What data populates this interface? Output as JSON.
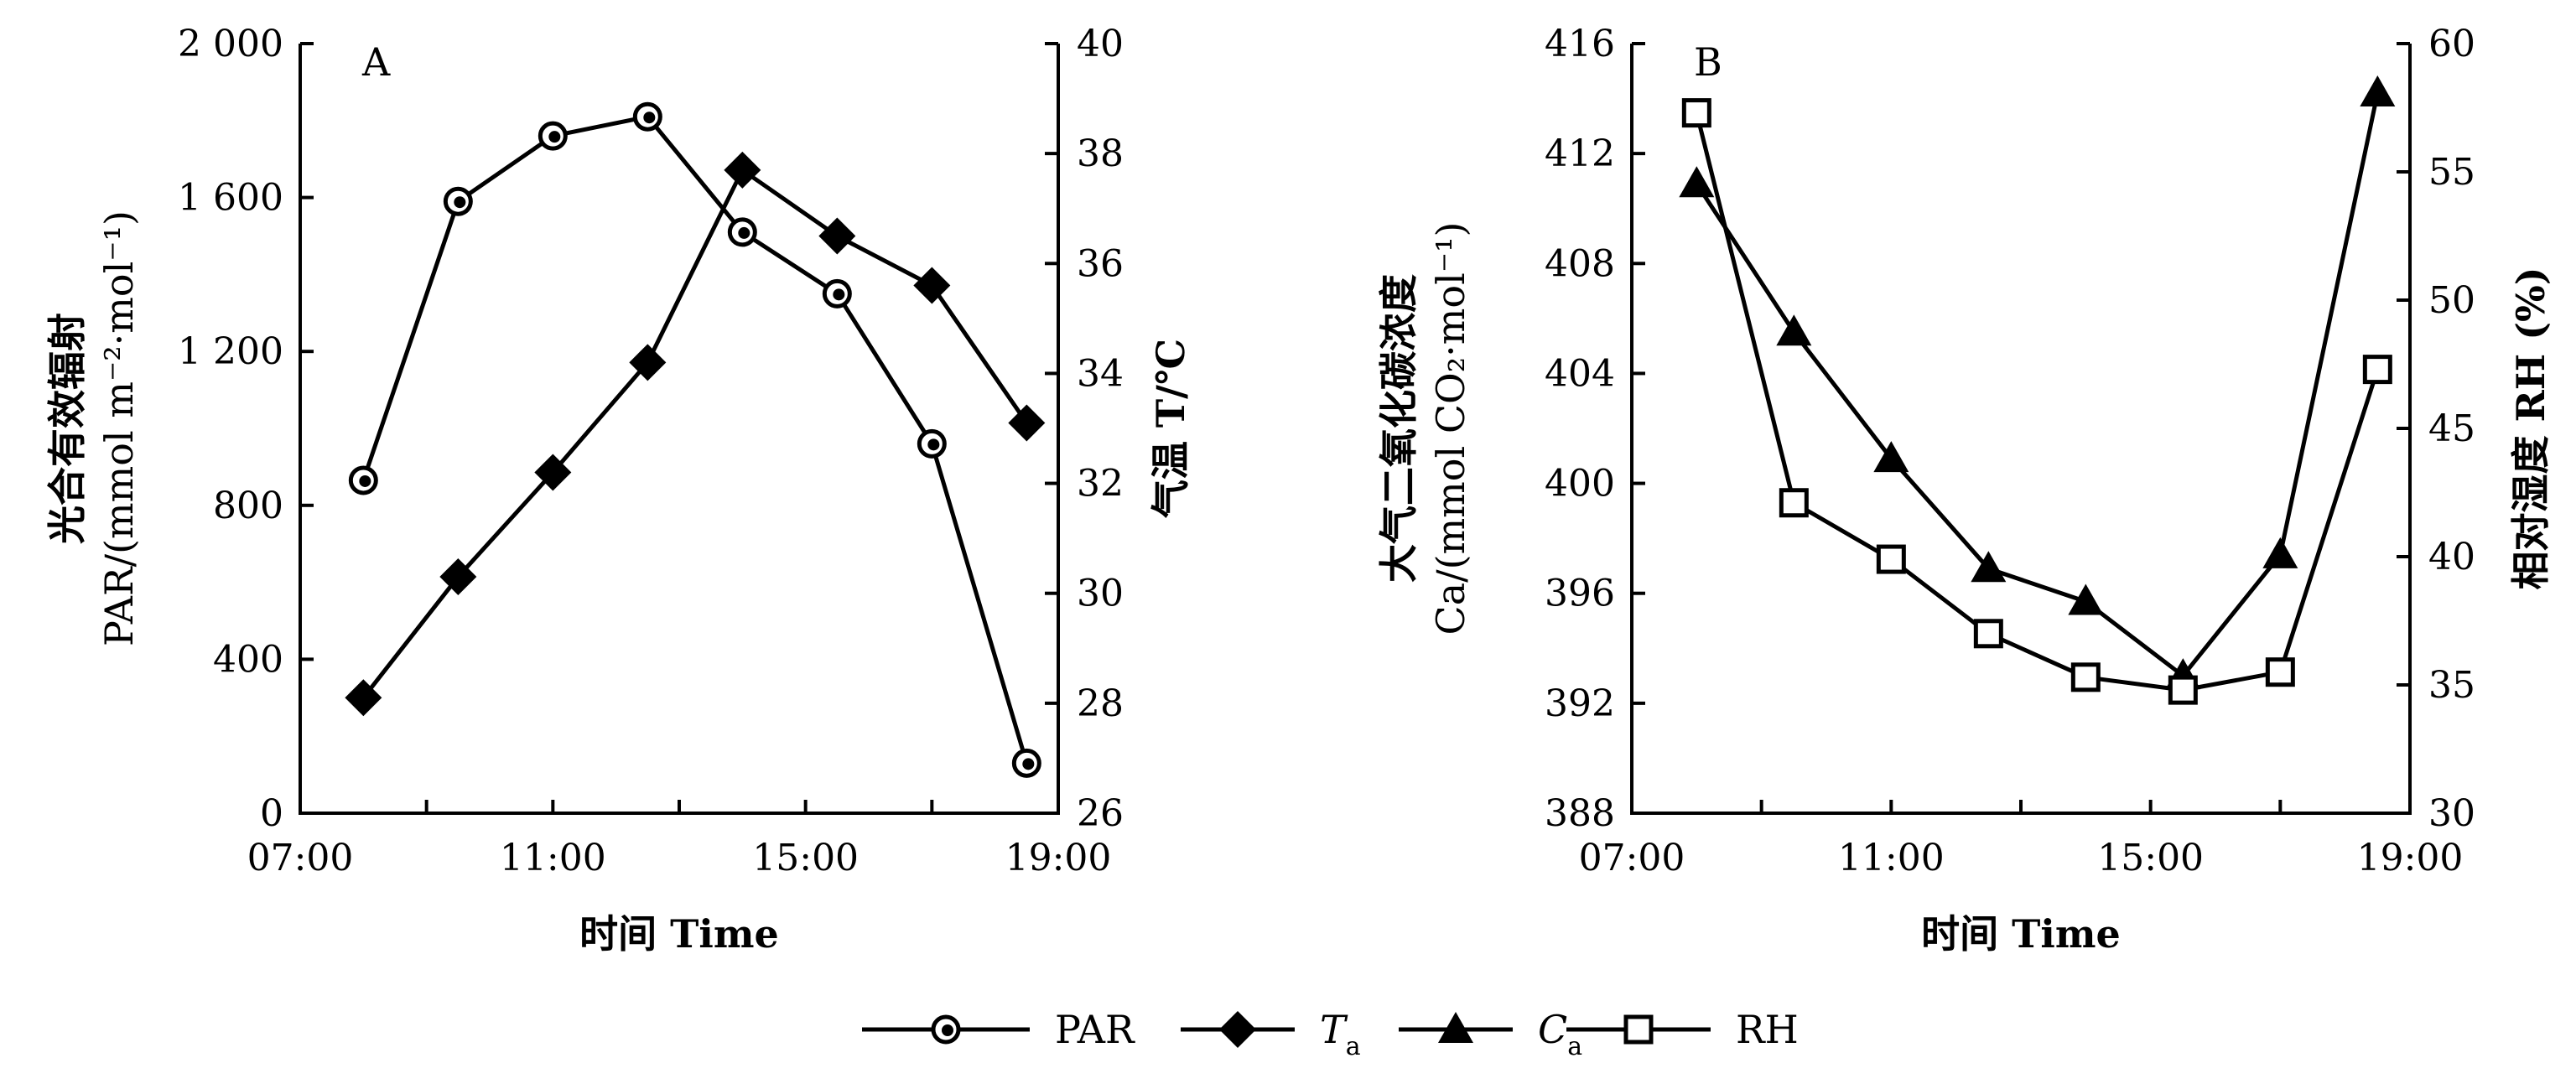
{
  "chart_data": [
    {
      "type": "line",
      "panel_label": "A",
      "xlabel": "时间 Time",
      "ylabel_left_line1": "光合有效辐射",
      "ylabel_left_line2": "PAR/(mmol m⁻²·mol⁻¹)",
      "ylabel_right": "气温 T/℃",
      "xlim": [
        "07:00",
        "19:00"
      ],
      "x_ticks": [
        "07:00",
        "11:00",
        "15:00",
        "19:00"
      ],
      "ylim_left": [
        0,
        2000
      ],
      "y_ticks_left": [
        "0",
        "400",
        "800",
        "1 200",
        "1 600",
        "2 000"
      ],
      "ylim_right": [
        26,
        40
      ],
      "y_ticks_right": [
        "26",
        "28",
        "30",
        "32",
        "34",
        "36",
        "38",
        "40"
      ],
      "series": [
        {
          "name": "PAR",
          "axis": "left",
          "marker": "circle-dot",
          "x": [
            "08:00",
            "09:30",
            "11:00",
            "12:30",
            "14:00",
            "15:30",
            "17:00",
            "18:30"
          ],
          "values": [
            865,
            1590,
            1760,
            1810,
            1510,
            1350,
            960,
            130
          ]
        },
        {
          "name": "Ta",
          "axis": "right",
          "marker": "diamond",
          "x": [
            "08:00",
            "09:30",
            "11:00",
            "12:30",
            "14:00",
            "15:30",
            "17:00",
            "18:30"
          ],
          "values": [
            28.1,
            30.3,
            32.2,
            34.2,
            37.7,
            36.5,
            35.6,
            33.1
          ]
        }
      ]
    },
    {
      "type": "line",
      "panel_label": "B",
      "xlabel": "时间 Time",
      "ylabel_left_line1": "大气二氧化碳浓度",
      "ylabel_left_line2": "Ca/(mmol CO₂·mol⁻¹)",
      "ylabel_right": "相对湿度 RH (%)",
      "xlim": [
        "07:00",
        "19:00"
      ],
      "x_ticks": [
        "07:00",
        "11:00",
        "15:00",
        "19:00"
      ],
      "ylim_left": [
        388,
        416
      ],
      "y_ticks_left": [
        "388",
        "392",
        "396",
        "400",
        "404",
        "408",
        "412",
        "416"
      ],
      "ylim_right": [
        30,
        60
      ],
      "y_ticks_right": [
        "30",
        "35",
        "40",
        "45",
        "50",
        "55",
        "60"
      ],
      "series": [
        {
          "name": "Ca",
          "axis": "left",
          "marker": "triangle",
          "x": [
            "08:00",
            "09:30",
            "11:00",
            "12:30",
            "14:00",
            "15:30",
            "17:00",
            "18:30"
          ],
          "values": [
            410.9,
            405.5,
            400.9,
            396.9,
            395.7,
            393.0,
            397.4,
            414.2
          ]
        },
        {
          "name": "RH",
          "axis": "right",
          "marker": "square",
          "x": [
            "08:00",
            "09:30",
            "11:00",
            "12:30",
            "14:00",
            "15:30",
            "17:00",
            "18:30"
          ],
          "values": [
            57.3,
            42.1,
            39.9,
            37.0,
            35.3,
            34.8,
            35.5,
            47.3
          ]
        }
      ]
    }
  ],
  "legend": {
    "position": "bottom",
    "items": [
      {
        "label": "PAR",
        "marker": "circle-dot"
      },
      {
        "label": "T",
        "sub": "a",
        "marker": "diamond"
      },
      {
        "label": "C",
        "sub": "a",
        "marker": "triangle"
      },
      {
        "label": "RH",
        "marker": "square"
      }
    ]
  }
}
